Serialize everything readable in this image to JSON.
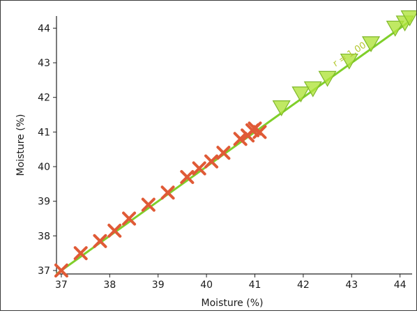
{
  "chart_data": {
    "type": "scatter",
    "title": "",
    "xlabel": "Moisture (%)",
    "ylabel": "Moisture (%)",
    "xlim": [
      36.9,
      44.25
    ],
    "ylim": [
      36.9,
      44.35
    ],
    "xticks": [
      "37",
      "38",
      "39",
      "40",
      "41",
      "42",
      "43",
      "44"
    ],
    "yticks": [
      "37",
      "38",
      "39",
      "40",
      "41",
      "42",
      "43",
      "44"
    ],
    "grid": false,
    "annotation": "r = 1.00",
    "fit_line": {
      "x": [
        36.9,
        44.25
      ],
      "y": [
        36.9,
        44.25
      ],
      "color": "#7fcf2a"
    },
    "series": [
      {
        "marker": "x",
        "color": "#e05a36",
        "points": [
          [
            37.0,
            37.0
          ],
          [
            37.4,
            37.5
          ],
          [
            37.8,
            37.85
          ],
          [
            38.1,
            38.15
          ],
          [
            38.4,
            38.5
          ],
          [
            38.8,
            38.9
          ],
          [
            39.2,
            39.25
          ],
          [
            39.6,
            39.7
          ],
          [
            39.85,
            39.95
          ],
          [
            40.1,
            40.15
          ],
          [
            40.35,
            40.4
          ],
          [
            40.7,
            40.8
          ],
          [
            40.85,
            40.9
          ],
          [
            40.95,
            41.05
          ],
          [
            41.0,
            41.1
          ],
          [
            41.1,
            41.0
          ]
        ]
      },
      {
        "marker": "triangle",
        "color": "#b0e43c",
        "points": [
          [
            41.55,
            41.7
          ],
          [
            41.95,
            42.1
          ],
          [
            42.2,
            42.25
          ],
          [
            42.5,
            42.55
          ],
          [
            42.95,
            43.05
          ],
          [
            43.4,
            43.55
          ],
          [
            43.9,
            44.0
          ],
          [
            44.1,
            44.15
          ],
          [
            44.2,
            44.3
          ]
        ]
      }
    ]
  }
}
